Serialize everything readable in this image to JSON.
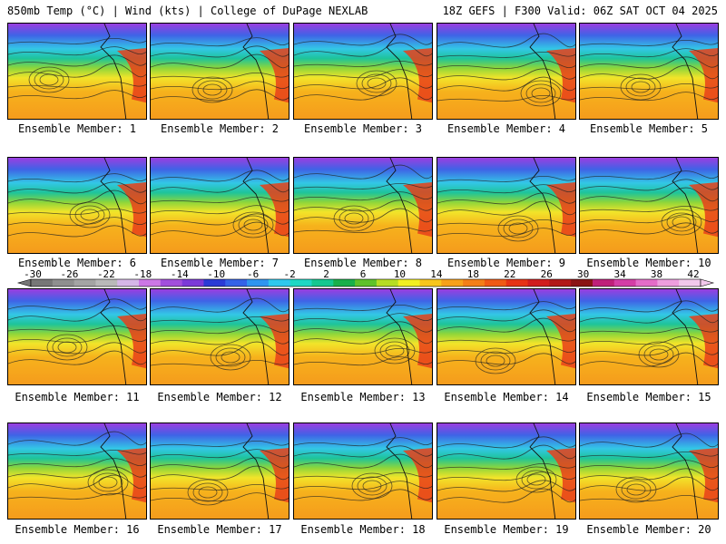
{
  "header": {
    "left": "850mb Temp (°C) | Wind (kts) | College of DuPage NEXLAB",
    "right": "18Z GEFS | F300 Valid: 06Z SAT OCT 04 2025"
  },
  "colorbar": {
    "ticks": [
      "-30",
      "-26",
      "-22",
      "-18",
      "-14",
      "-10",
      "-6",
      "-2",
      "2",
      "6",
      "10",
      "14",
      "18",
      "22",
      "26",
      "30",
      "34",
      "38",
      "42"
    ],
    "palette": [
      "#777777",
      "#8f8f8f",
      "#a4a4a4",
      "#b9b9b9",
      "#d5b6e8",
      "#cc77e6",
      "#a24fdc",
      "#7c3ad8",
      "#2b3bd6",
      "#3463e8",
      "#2f95f0",
      "#2fc8ee",
      "#1fd8c4",
      "#15c890",
      "#19b04a",
      "#5fc22a",
      "#b6dd24",
      "#f2ef22",
      "#f8c61c",
      "#f7a11a",
      "#f47f18",
      "#f05a16",
      "#e63316",
      "#d11e1e",
      "#b21818",
      "#8a1414",
      "#bf207a",
      "#d43ea6",
      "#e46cc8",
      "#ee9ede",
      "#f2c8ec"
    ]
  },
  "panels": [
    {
      "label": "Ensemble Member: 1"
    },
    {
      "label": "Ensemble Member: 2"
    },
    {
      "label": "Ensemble Member: 3"
    },
    {
      "label": "Ensemble Member: 4"
    },
    {
      "label": "Ensemble Member: 5"
    },
    {
      "label": "Ensemble Member: 6"
    },
    {
      "label": "Ensemble Member: 7"
    },
    {
      "label": "Ensemble Member: 8"
    },
    {
      "label": "Ensemble Member: 9"
    },
    {
      "label": "Ensemble Member: 10"
    },
    {
      "label": "Ensemble Member: 11"
    },
    {
      "label": "Ensemble Member: 12"
    },
    {
      "label": "Ensemble Member: 13"
    },
    {
      "label": "Ensemble Member: 14"
    },
    {
      "label": "Ensemble Member: 15"
    },
    {
      "label": "Ensemble Member: 16"
    },
    {
      "label": "Ensemble Member: 17"
    },
    {
      "label": "Ensemble Member: 18"
    },
    {
      "label": "Ensemble Member: 19"
    },
    {
      "label": "Ensemble Member: 20"
    }
  ]
}
